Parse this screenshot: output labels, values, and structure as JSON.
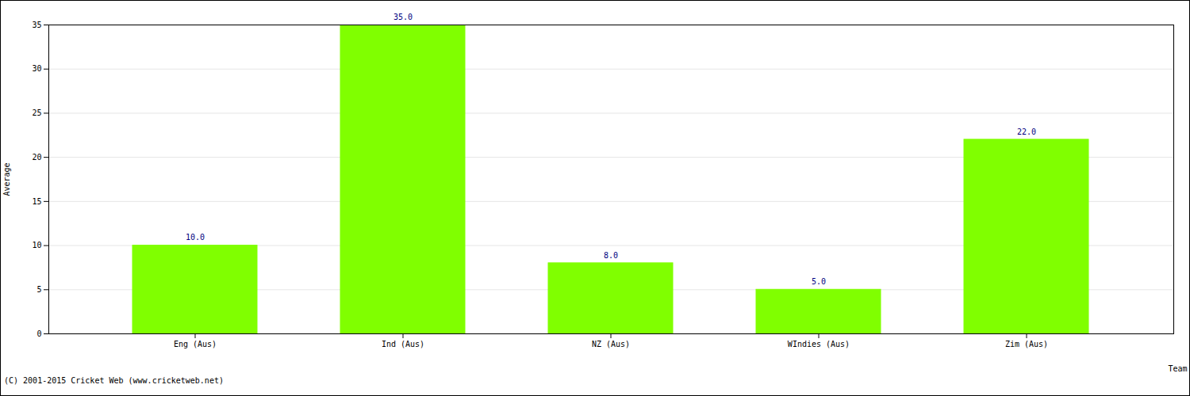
{
  "chart_data": {
    "type": "bar",
    "categories": [
      "Eng (Aus)",
      "Ind (Aus)",
      "NZ (Aus)",
      "WIndies (Aus)",
      "Zim (Aus)"
    ],
    "values": [
      10,
      35,
      8,
      5,
      22
    ],
    "value_labels": [
      "10.0",
      "35.0",
      "8.0",
      "5.0",
      "22.0"
    ],
    "data_labels": true,
    "color": "#80ff00",
    "x_label": "Team",
    "y_label": "Average",
    "ylim": [
      0,
      35
    ],
    "yticks": [
      0,
      5,
      10,
      15,
      20,
      25,
      30,
      35
    ],
    "grid": true,
    "caption": "(C) 2001-2015 Cricket Web (www.cricketweb.net)"
  }
}
